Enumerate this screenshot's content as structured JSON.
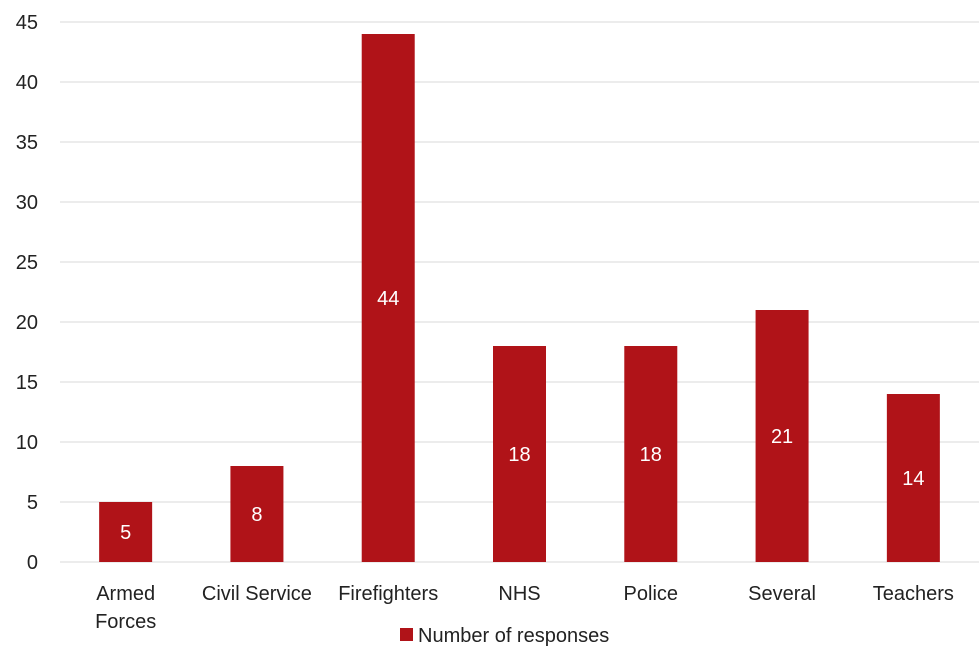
{
  "chart_data": {
    "type": "bar",
    "categories": [
      [
        "Armed",
        "Forces"
      ],
      [
        "Civil Service"
      ],
      [
        "Firefighters"
      ],
      [
        "NHS"
      ],
      [
        "Police"
      ],
      [
        "Several"
      ],
      [
        "Teachers"
      ]
    ],
    "series": [
      {
        "name": "Number of responses",
        "values": [
          5,
          8,
          44,
          18,
          18,
          21,
          14
        ],
        "color": "#B01318"
      }
    ],
    "ylim": [
      0,
      45
    ],
    "yticks": [
      0,
      5,
      10,
      15,
      20,
      25,
      30,
      35,
      40,
      45
    ],
    "grid": true,
    "legend_position": "bottom",
    "data_labels": true,
    "gridline_color": "#d9d9d9",
    "text_color": "#222222"
  }
}
